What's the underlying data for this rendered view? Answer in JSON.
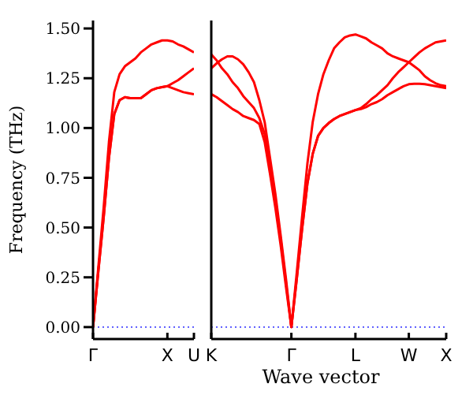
{
  "chart_data": [
    {
      "type": "line",
      "ylabel": "Frequency (THz)",
      "categories": [
        "Γ",
        null,
        null,
        null,
        null,
        null,
        null,
        null,
        null,
        null,
        null,
        null,
        null,
        null,
        "X",
        null,
        null,
        null,
        null,
        "U"
      ],
      "ylim": [
        -0.06,
        1.54
      ],
      "yticks": [
        {
          "value": 0,
          "label": "0.00"
        },
        {
          "value": 0.25,
          "label": "0.25"
        },
        {
          "value": 0.5,
          "label": "0.50"
        },
        {
          "value": 0.75,
          "label": "0.75"
        },
        {
          "value": 1,
          "label": "1.00"
        },
        {
          "value": 1.25,
          "label": "1.25"
        },
        {
          "value": 1.5,
          "label": "1.50"
        }
      ],
      "marker": "none",
      "line_style": "solid",
      "ref_lines": [
        {
          "axis": "y",
          "value": 0,
          "color": "#0000ff",
          "line_style": "dotted"
        }
      ],
      "series": [
        {
          "color": "#ff0000",
          "values": [
            0,
            0.28,
            0.55,
            0.85,
            1.07,
            1.14,
            1.155,
            1.15,
            1.15,
            1.15,
            1.17,
            1.19,
            1.2,
            1.205,
            1.21,
            1.2,
            1.19,
            1.18,
            1.175,
            1.17
          ]
        },
        {
          "color": "#ff0000",
          "values": [
            0,
            0.28,
            0.55,
            0.85,
            1.07,
            1.14,
            1.155,
            1.15,
            1.15,
            1.15,
            1.17,
            1.19,
            1.2,
            1.205,
            1.21,
            1.225,
            1.24,
            1.26,
            1.28,
            1.3
          ]
        },
        {
          "color": "#ff0000",
          "values": [
            0,
            0.3,
            0.6,
            0.93,
            1.18,
            1.27,
            1.31,
            1.33,
            1.35,
            1.38,
            1.4,
            1.42,
            1.43,
            1.44,
            1.44,
            1.435,
            1.42,
            1.41,
            1.395,
            1.38
          ]
        }
      ]
    },
    {
      "type": "line",
      "xlabel": "Wave vector",
      "categories": [
        "K",
        null,
        null,
        null,
        null,
        null,
        null,
        null,
        null,
        null,
        null,
        null,
        null,
        null,
        null,
        "Γ",
        null,
        null,
        null,
        null,
        null,
        null,
        null,
        null,
        null,
        null,
        null,
        "L",
        null,
        null,
        null,
        null,
        null,
        null,
        null,
        null,
        null,
        "W",
        null,
        null,
        null,
        null,
        null,
        null,
        "X"
      ],
      "ylim": [
        -0.06,
        1.54
      ],
      "yticks": [
        {
          "value": 0,
          "label": null
        },
        {
          "value": 0.25,
          "label": null
        },
        {
          "value": 0.5,
          "label": null
        },
        {
          "value": 0.75,
          "label": null
        },
        {
          "value": 1,
          "label": null
        },
        {
          "value": 1.25,
          "label": null
        },
        {
          "value": 1.5,
          "label": null
        }
      ],
      "tick_labels": "x",
      "marker": "none",
      "line_style": "solid",
      "ref_lines": [
        {
          "axis": "y",
          "value": 0,
          "color": "#0000ff",
          "line_style": "dotted"
        }
      ],
      "series": [
        {
          "color": "#ff0000",
          "values": [
            1.3,
            1.325,
            1.345,
            1.36,
            1.36,
            1.345,
            1.32,
            1.28,
            1.23,
            1.14,
            1.03,
            0.85,
            0.67,
            0.46,
            0.24,
            0,
            0.27,
            0.55,
            0.82,
            1.03,
            1.17,
            1.27,
            1.34,
            1.4,
            1.43,
            1.455,
            1.465,
            1.47,
            1.46,
            1.45,
            1.43,
            1.415,
            1.4,
            1.375,
            1.36,
            1.35,
            1.34,
            1.33,
            1.31,
            1.29,
            1.26,
            1.24,
            1.225,
            1.215,
            1.21
          ]
        },
        {
          "color": "#ff0000",
          "values": [
            1.37,
            1.34,
            1.3,
            1.27,
            1.23,
            1.2,
            1.16,
            1.13,
            1.1,
            1.05,
            0.97,
            0.82,
            0.64,
            0.44,
            0.22,
            0,
            0.24,
            0.49,
            0.72,
            0.87,
            0.96,
            1,
            1.025,
            1.045,
            1.06,
            1.07,
            1.08,
            1.09,
            1.1,
            1.12,
            1.145,
            1.165,
            1.19,
            1.215,
            1.25,
            1.28,
            1.305,
            1.33,
            1.355,
            1.38,
            1.4,
            1.415,
            1.43,
            1.435,
            1.44
          ]
        },
        {
          "color": "#ff0000",
          "values": [
            1.17,
            1.155,
            1.135,
            1.115,
            1.095,
            1.08,
            1.06,
            1.05,
            1.04,
            1.02,
            0.93,
            0.77,
            0.6,
            0.41,
            0.2,
            0,
            0.24,
            0.49,
            0.72,
            0.87,
            0.96,
            1,
            1.025,
            1.045,
            1.06,
            1.07,
            1.08,
            1.09,
            1.095,
            1.105,
            1.12,
            1.13,
            1.145,
            1.165,
            1.18,
            1.195,
            1.21,
            1.22,
            1.222,
            1.222,
            1.22,
            1.215,
            1.21,
            1.205,
            1.2
          ]
        }
      ]
    }
  ]
}
